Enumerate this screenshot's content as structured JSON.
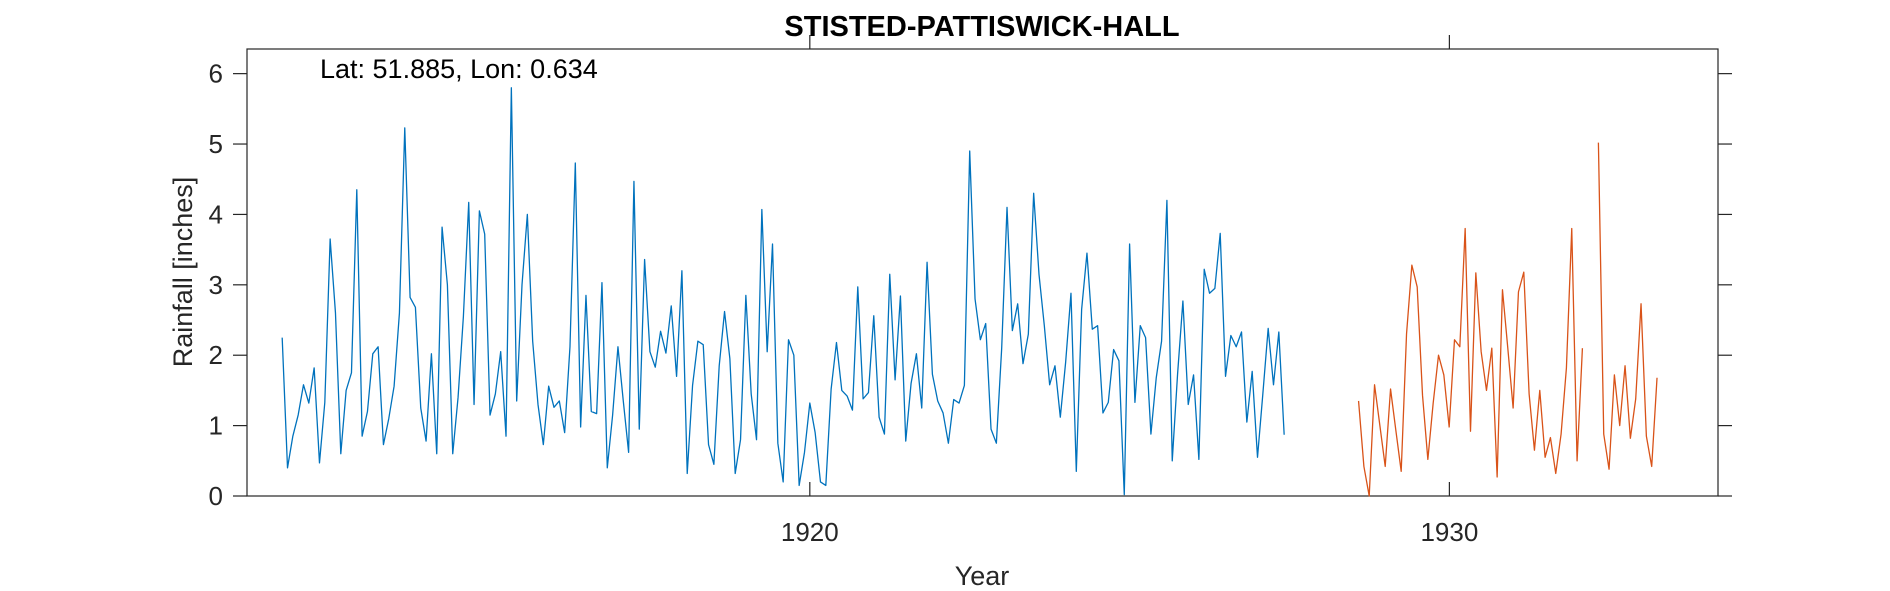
{
  "chart_data": {
    "type": "line",
    "title": "STISTED-PATTISWICK-HALL",
    "annotation": "Lat: 51.885, Lon: 0.634",
    "xlabel": "Year",
    "ylabel": "Rainfall [inches]",
    "xlim": [
      1911.2,
      1934.2
    ],
    "ylim": [
      0,
      6.35
    ],
    "xticks": [
      1920,
      1930
    ],
    "yticks": [
      0,
      1,
      2,
      3,
      4,
      5,
      6
    ],
    "grid": false,
    "series": [
      {
        "color": "#0072BD",
        "x_start": 1911.75,
        "x_step": 0.0833333,
        "values": [
          2.25,
          0.4,
          0.85,
          1.15,
          1.58,
          1.32,
          1.82,
          0.47,
          1.33,
          3.65,
          2.6,
          0.6,
          1.5,
          1.75,
          4.35,
          0.85,
          1.2,
          2.02,
          2.12,
          0.73,
          1.1,
          1.56,
          2.6,
          5.23,
          2.82,
          2.68,
          1.25,
          0.78,
          2.02,
          0.6,
          3.82,
          3.0,
          0.6,
          1.4,
          2.55,
          4.17,
          1.3,
          4.05,
          3.72,
          1.15,
          1.45,
          2.05,
          0.85,
          5.8,
          1.35,
          3.0,
          4.0,
          2.2,
          1.3,
          0.73,
          1.56,
          1.26,
          1.35,
          0.9,
          2.12,
          4.73,
          0.98,
          2.85,
          1.2,
          1.17,
          3.03,
          0.4,
          1.15,
          2.12,
          1.35,
          0.62,
          4.47,
          0.95,
          3.36,
          2.05,
          1.83,
          2.34,
          2.03,
          2.7,
          1.7,
          3.2,
          0.32,
          1.57,
          2.2,
          2.15,
          0.73,
          0.45,
          1.85,
          2.62,
          1.95,
          0.32,
          0.8,
          2.85,
          1.45,
          0.8,
          4.07,
          2.05,
          3.58,
          0.75,
          0.2,
          2.22,
          2.0,
          0.15,
          0.62,
          1.32,
          0.9,
          0.2,
          0.15,
          1.52,
          2.18,
          1.5,
          1.42,
          1.22,
          2.97,
          1.38,
          1.47,
          2.56,
          1.12,
          0.88,
          3.15,
          1.65,
          2.84,
          0.78,
          1.6,
          2.02,
          1.25,
          3.32,
          1.73,
          1.35,
          1.18,
          0.75,
          1.37,
          1.32,
          1.57,
          4.9,
          2.8,
          2.22,
          2.45,
          0.95,
          0.75,
          2.1,
          4.1,
          2.35,
          2.73,
          1.88,
          2.3,
          4.3,
          3.15,
          2.42,
          1.58,
          1.85,
          1.12,
          1.9,
          2.88,
          0.35,
          2.65,
          3.45,
          2.37,
          2.42,
          1.18,
          1.33,
          2.08,
          1.92,
          0.02,
          3.58,
          1.33,
          2.42,
          2.25,
          0.88,
          1.68,
          2.2,
          4.2,
          0.5,
          1.73,
          2.77,
          1.3,
          1.72,
          0.52,
          3.22,
          2.88,
          2.95,
          3.73,
          1.7,
          2.28,
          2.12,
          2.33,
          1.05,
          1.77,
          0.55,
          1.45,
          2.38,
          1.58,
          2.33,
          0.87
        ]
      },
      {
        "color": "#D95319",
        "x_start": 1928.58,
        "x_step": 0.0833333,
        "values": [
          1.35,
          0.42,
          0.0,
          1.58,
          1.0,
          0.42,
          1.52,
          0.93,
          0.35,
          2.3,
          3.28,
          2.97,
          1.43,
          0.52,
          1.32,
          2.0,
          1.72,
          0.98,
          2.22,
          2.12,
          3.8,
          0.92,
          3.17,
          2.05,
          1.5,
          2.1,
          0.27,
          2.93,
          2.1,
          1.25,
          2.9,
          3.18,
          1.45,
          0.65,
          1.5,
          0.55,
          0.83,
          0.32,
          0.88,
          1.82,
          3.8,
          0.5,
          2.1,
          null,
          null,
          5.02,
          0.88,
          0.38,
          1.72,
          1.0,
          1.85,
          0.82,
          1.38,
          2.73,
          0.85,
          0.42,
          1.68
        ]
      }
    ]
  }
}
